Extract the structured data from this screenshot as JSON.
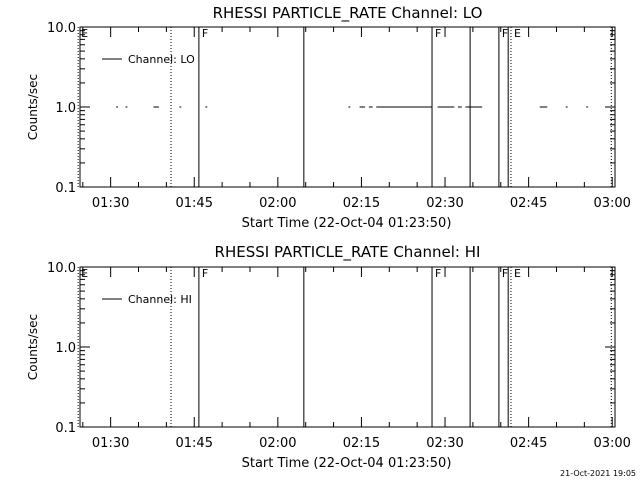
{
  "footer": {
    "timestamp": "21-Oct-2021 19:05"
  },
  "chart_data": [
    {
      "type": "line",
      "title": "RHESSI PARTICLE_RATE Channel: LO",
      "xlabel": "Start Time (22-Oct-04 01:23:50)",
      "ylabel": "Counts/sec",
      "y_scale": "log",
      "ylim": [
        0.1,
        10.0
      ],
      "y_ticks": [
        "0.1",
        "1.0",
        "10.0"
      ],
      "xlim_minutes_after_0130": [
        -5.5,
        90.5
      ],
      "x_ticks": [
        "01:30",
        "01:45",
        "02:00",
        "02:15",
        "02:30",
        "02:45",
        "03:00"
      ],
      "legend": {
        "label": "Channel: LO",
        "position": "top-left"
      },
      "series": [
        {
          "name": "Channel: LO",
          "segments": [
            {
              "x": [
                "01:31:00",
                "01:31:20"
              ],
              "y": 1.0
            },
            {
              "x": [
                "01:32:40",
                "01:33:00"
              ],
              "y": 1.0
            },
            {
              "x": [
                "01:37:40",
                "01:38:40"
              ],
              "y": 1.0
            },
            {
              "x": [
                "01:42:20",
                "01:42:40"
              ],
              "y": 1.0
            },
            {
              "x": [
                "01:47:00",
                "01:47:20"
              ],
              "y": 1.0
            },
            {
              "x": [
                "02:12:40",
                "02:13:00"
              ],
              "y": 1.0
            },
            {
              "x": [
                "02:14:40",
                "02:15:40"
              ],
              "y": 1.0
            },
            {
              "x": [
                "02:16:20",
                "02:17:00"
              ],
              "y": 1.0
            },
            {
              "x": [
                "02:17:40",
                "02:27:40"
              ],
              "y": 1.0
            },
            {
              "x": [
                "02:28:40",
                "02:31:40"
              ],
              "y": 1.0
            },
            {
              "x": [
                "02:32:20",
                "02:33:00"
              ],
              "y": 1.0
            },
            {
              "x": [
                "02:33:40",
                "02:36:40"
              ],
              "y": 1.0
            },
            {
              "x": [
                "02:47:00",
                "02:48:20"
              ],
              "y": 1.0
            },
            {
              "x": [
                "02:51:40",
                "02:52:00"
              ],
              "y": 1.0
            },
            {
              "x": [
                "02:55:20",
                "02:55:40"
              ],
              "y": 1.0
            }
          ]
        }
      ],
      "event_lines": [
        {
          "time": "01:24:10",
          "style": "dotted",
          "label": "E"
        },
        {
          "time": "01:40:50",
          "style": "dotted",
          "label": ""
        },
        {
          "time": "01:45:50",
          "style": "solid",
          "label": "F"
        },
        {
          "time": "02:04:40",
          "style": "solid",
          "label": ""
        },
        {
          "time": "02:27:40",
          "style": "solid",
          "label": "F"
        },
        {
          "time": "02:34:30",
          "style": "solid",
          "label": ""
        },
        {
          "time": "02:39:40",
          "style": "solid",
          "label": "F"
        },
        {
          "time": "02:41:20",
          "style": "solid",
          "label": ""
        },
        {
          "time": "02:41:50",
          "style": "dotted",
          "label": "E"
        },
        {
          "time": "02:59:50",
          "style": "dotted",
          "label": ""
        }
      ]
    },
    {
      "type": "line",
      "title": "RHESSI PARTICLE_RATE Channel: HI",
      "xlabel": "Start Time (22-Oct-04 01:23:50)",
      "ylabel": "Counts/sec",
      "y_scale": "log",
      "ylim": [
        0.1,
        10.0
      ],
      "y_ticks": [
        "0.1",
        "1.0",
        "10.0"
      ],
      "xlim_minutes_after_0130": [
        -5.5,
        90.5
      ],
      "x_ticks": [
        "01:30",
        "01:45",
        "02:00",
        "02:15",
        "02:30",
        "02:45",
        "03:00"
      ],
      "legend": {
        "label": "Channel: HI",
        "position": "top-left"
      },
      "series": [
        {
          "name": "Channel: HI",
          "segments": []
        }
      ],
      "event_lines": [
        {
          "time": "01:24:10",
          "style": "dotted",
          "label": "E"
        },
        {
          "time": "01:40:50",
          "style": "dotted",
          "label": ""
        },
        {
          "time": "01:45:50",
          "style": "solid",
          "label": "F"
        },
        {
          "time": "02:04:40",
          "style": "solid",
          "label": ""
        },
        {
          "time": "02:27:40",
          "style": "solid",
          "label": "F"
        },
        {
          "time": "02:34:30",
          "style": "solid",
          "label": ""
        },
        {
          "time": "02:39:40",
          "style": "solid",
          "label": "F"
        },
        {
          "time": "02:41:20",
          "style": "solid",
          "label": ""
        },
        {
          "time": "02:41:50",
          "style": "dotted",
          "label": "E"
        },
        {
          "time": "02:59:50",
          "style": "dotted",
          "label": ""
        }
      ]
    }
  ]
}
